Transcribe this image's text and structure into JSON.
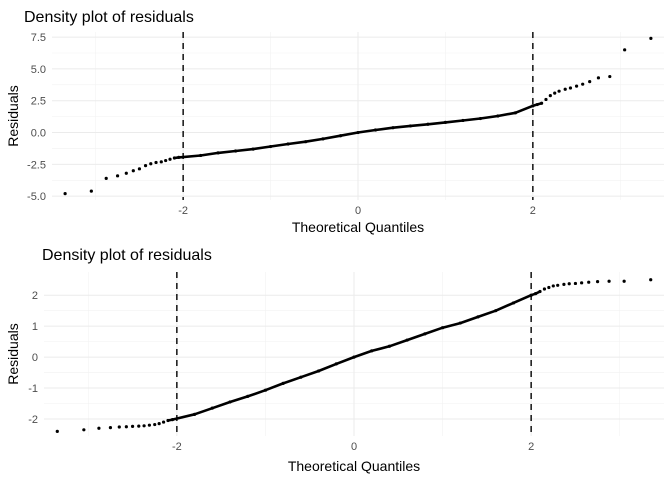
{
  "chart_data": [
    {
      "type": "scatter",
      "title": "Density plot of residuals",
      "xlabel": "Theoretical Quantiles",
      "ylabel": "Residuals",
      "xlim": [
        -3.5,
        3.5
      ],
      "ylim": [
        -5.3,
        7.9
      ],
      "x_ticks": [
        -2,
        0,
        2
      ],
      "x_tick_labels": [
        "-2",
        "0",
        "2"
      ],
      "y_ticks": [
        -5.0,
        -2.5,
        0.0,
        2.5,
        5.0,
        7.5
      ],
      "y_tick_labels": [
        "-5.0",
        "-2.5",
        "0.0",
        "2.5",
        "5.0",
        "7.5"
      ],
      "vlines": [
        -2,
        2
      ],
      "grid": true,
      "points": [
        [
          -3.35,
          -4.8
        ],
        [
          -3.05,
          -4.6
        ],
        [
          -2.88,
          -3.6
        ],
        [
          -2.75,
          -3.4
        ],
        [
          -2.65,
          -3.2
        ],
        [
          -2.57,
          -3.0
        ],
        [
          -2.5,
          -2.85
        ],
        [
          -2.43,
          -2.6
        ],
        [
          -2.37,
          -2.45
        ],
        [
          -2.31,
          -2.35
        ],
        [
          -2.25,
          -2.3
        ],
        [
          -2.2,
          -2.2
        ],
        [
          -2.15,
          -2.1
        ],
        [
          -2.1,
          -2.0
        ],
        [
          -2.05,
          -1.95
        ],
        [
          -1.8,
          -1.8
        ],
        [
          -1.6,
          -1.6
        ],
        [
          -1.4,
          -1.45
        ],
        [
          -1.2,
          -1.3
        ],
        [
          -1.0,
          -1.1
        ],
        [
          -0.8,
          -0.9
        ],
        [
          -0.6,
          -0.72
        ],
        [
          -0.4,
          -0.5
        ],
        [
          -0.2,
          -0.25
        ],
        [
          0.0,
          0.0
        ],
        [
          0.2,
          0.2
        ],
        [
          0.4,
          0.38
        ],
        [
          0.6,
          0.52
        ],
        [
          0.8,
          0.65
        ],
        [
          1.0,
          0.8
        ],
        [
          1.2,
          0.95
        ],
        [
          1.4,
          1.1
        ],
        [
          1.6,
          1.3
        ],
        [
          1.8,
          1.55
        ],
        [
          2.0,
          2.1
        ],
        [
          2.05,
          2.2
        ],
        [
          2.1,
          2.3
        ],
        [
          2.15,
          2.6
        ],
        [
          2.2,
          2.9
        ],
        [
          2.25,
          3.1
        ],
        [
          2.3,
          3.25
        ],
        [
          2.37,
          3.4
        ],
        [
          2.43,
          3.5
        ],
        [
          2.5,
          3.65
        ],
        [
          2.57,
          3.8
        ],
        [
          2.65,
          4.0
        ],
        [
          2.75,
          4.3
        ],
        [
          2.88,
          4.4
        ],
        [
          3.05,
          6.5
        ],
        [
          3.35,
          7.4
        ]
      ]
    },
    {
      "type": "scatter",
      "title": "Density plot of residuals",
      "xlabel": "Theoretical Quantiles",
      "ylabel": "Residuals",
      "xlim": [
        -3.5,
        3.5
      ],
      "ylim": [
        -2.55,
        2.75
      ],
      "x_ticks": [
        -2,
        0,
        2
      ],
      "x_tick_labels": [
        "-2",
        "0",
        "2"
      ],
      "y_ticks": [
        -2,
        -1,
        0,
        1,
        2
      ],
      "y_tick_labels": [
        "-2",
        "-1",
        "0",
        "1",
        "2"
      ],
      "vlines": [
        -2,
        2
      ],
      "grid": true,
      "points": [
        [
          -3.35,
          -2.4
        ],
        [
          -3.05,
          -2.35
        ],
        [
          -2.88,
          -2.3
        ],
        [
          -2.75,
          -2.28
        ],
        [
          -2.65,
          -2.26
        ],
        [
          -2.57,
          -2.25
        ],
        [
          -2.5,
          -2.24
        ],
        [
          -2.43,
          -2.23
        ],
        [
          -2.37,
          -2.22
        ],
        [
          -2.31,
          -2.2
        ],
        [
          -2.25,
          -2.18
        ],
        [
          -2.2,
          -2.15
        ],
        [
          -2.15,
          -2.1
        ],
        [
          -2.1,
          -2.05
        ],
        [
          -2.05,
          -2.02
        ],
        [
          -1.8,
          -1.85
        ],
        [
          -1.6,
          -1.65
        ],
        [
          -1.4,
          -1.45
        ],
        [
          -1.2,
          -1.27
        ],
        [
          -1.0,
          -1.07
        ],
        [
          -0.8,
          -0.85
        ],
        [
          -0.6,
          -0.65
        ],
        [
          -0.4,
          -0.45
        ],
        [
          -0.2,
          -0.22
        ],
        [
          0.0,
          0.0
        ],
        [
          0.2,
          0.2
        ],
        [
          0.4,
          0.35
        ],
        [
          0.6,
          0.55
        ],
        [
          0.8,
          0.75
        ],
        [
          1.0,
          0.95
        ],
        [
          1.2,
          1.1
        ],
        [
          1.4,
          1.3
        ],
        [
          1.6,
          1.5
        ],
        [
          1.8,
          1.75
        ],
        [
          2.0,
          2.0
        ],
        [
          2.05,
          2.05
        ],
        [
          2.1,
          2.12
        ],
        [
          2.15,
          2.2
        ],
        [
          2.2,
          2.25
        ],
        [
          2.25,
          2.3
        ],
        [
          2.3,
          2.32
        ],
        [
          2.37,
          2.35
        ],
        [
          2.43,
          2.37
        ],
        [
          2.5,
          2.38
        ],
        [
          2.57,
          2.4
        ],
        [
          2.65,
          2.42
        ],
        [
          2.75,
          2.44
        ],
        [
          2.88,
          2.45
        ],
        [
          3.05,
          2.45
        ],
        [
          3.35,
          2.5
        ]
      ]
    }
  ]
}
